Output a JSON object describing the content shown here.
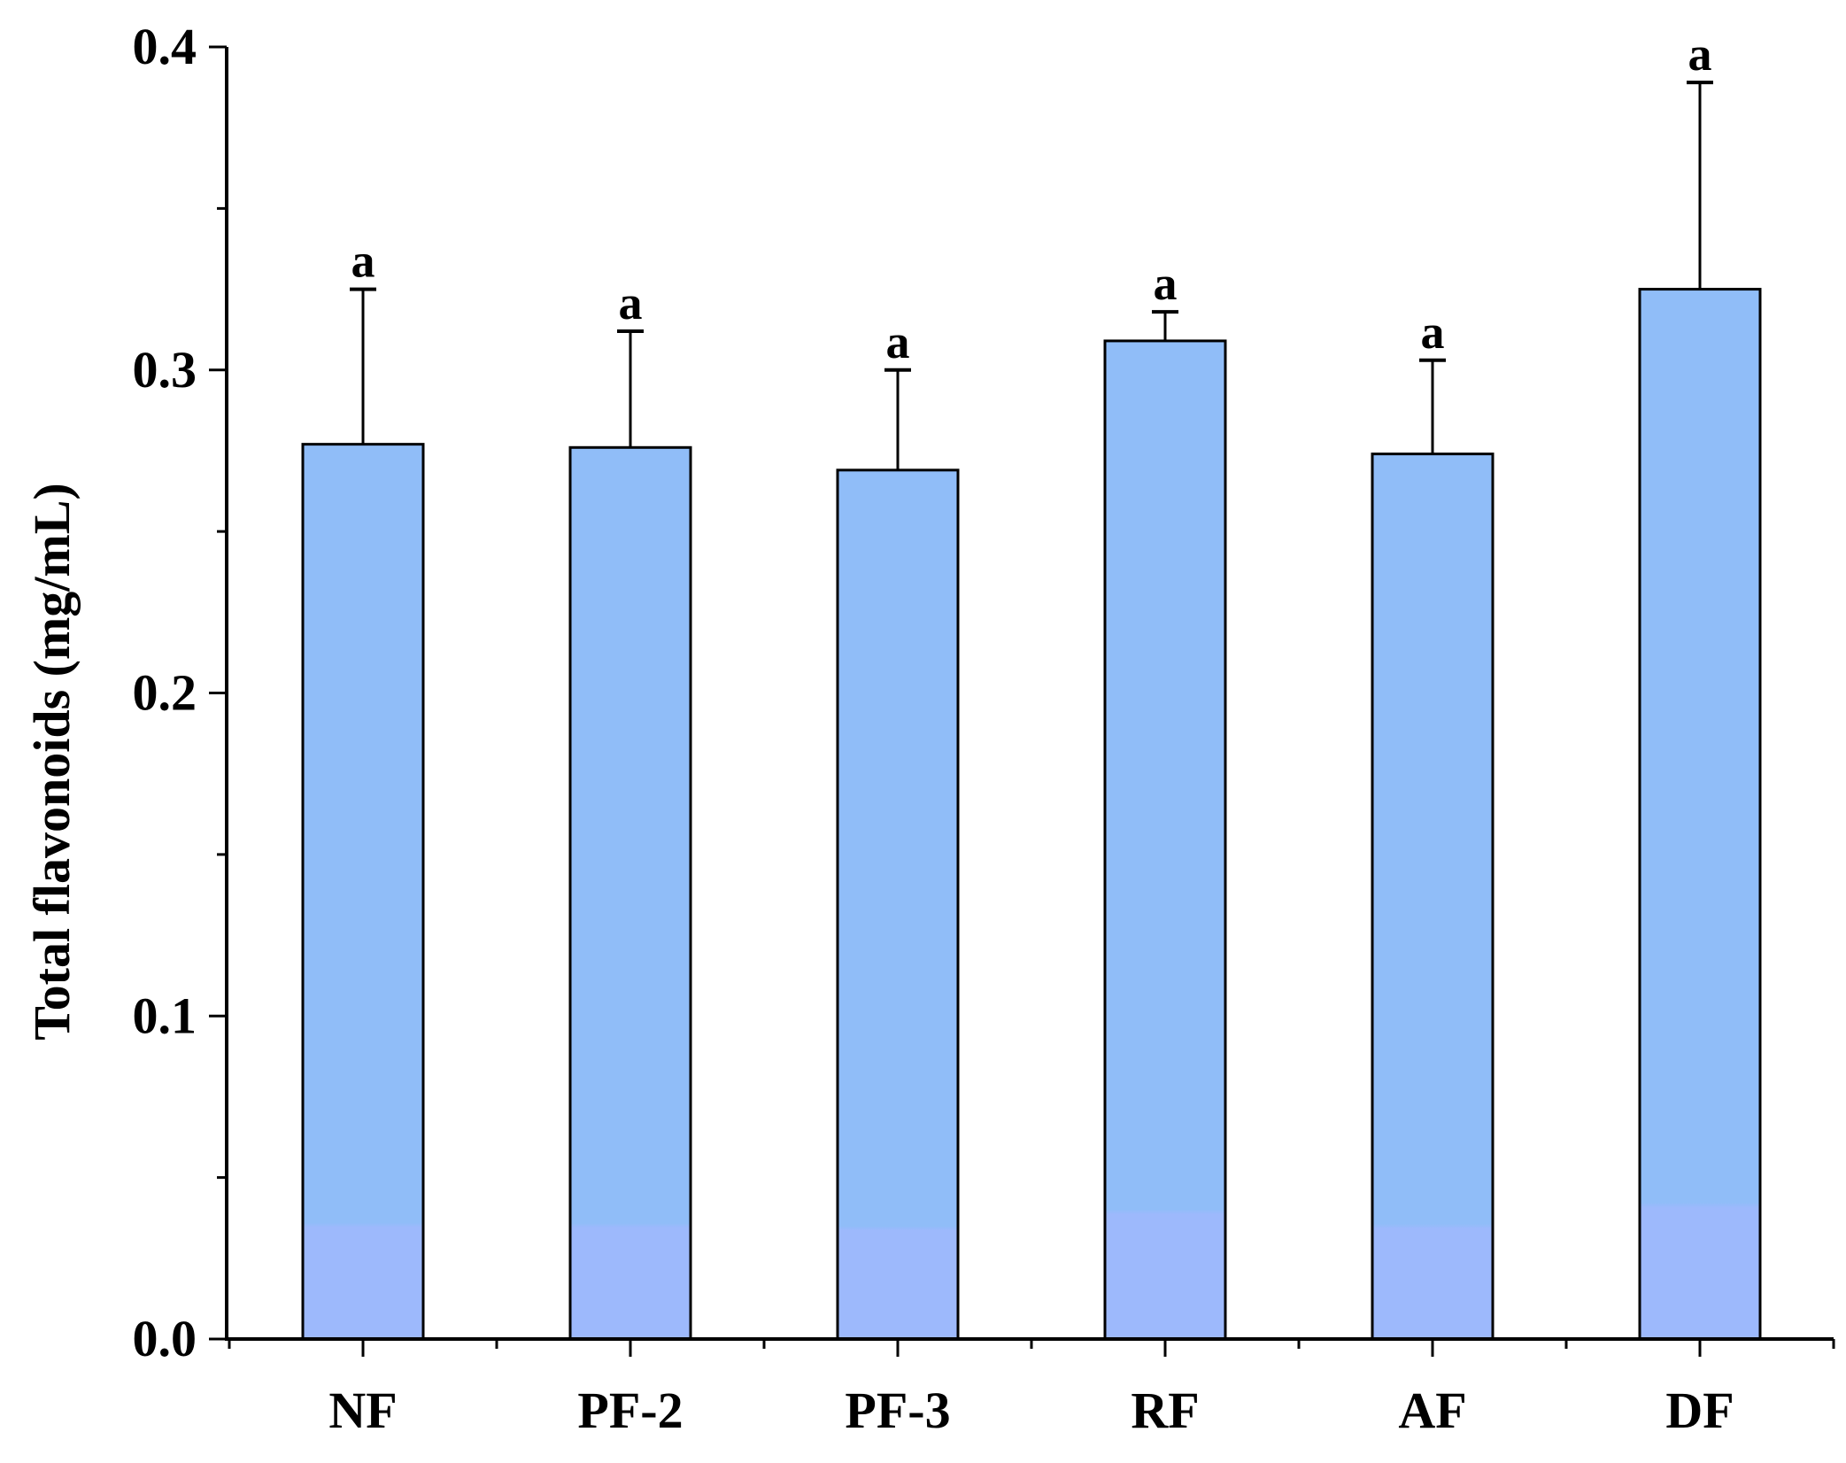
{
  "chart_data": {
    "type": "bar",
    "categories": [
      "NF",
      "PF-2",
      "PF-3",
      "RF",
      "AF",
      "DF"
    ],
    "values": [
      0.277,
      0.276,
      0.269,
      0.309,
      0.274,
      0.325
    ],
    "error_bars": [
      0.048,
      0.036,
      0.031,
      0.009,
      0.029,
      0.064
    ],
    "significance_labels": [
      "a",
      "a",
      "a",
      "a",
      "a",
      "a"
    ],
    "ylabel": "Total flavonoids (mg/mL)",
    "xlabel": "",
    "ylim": [
      0.0,
      0.4
    ],
    "yticks": [
      0.0,
      0.1,
      0.2,
      0.3,
      0.4
    ],
    "ytick_labels": [
      "0.0",
      "0.1",
      "0.2",
      "0.3",
      "0.4"
    ],
    "grid": false,
    "bar_color": "#90BDF8",
    "bar_color_bottom": "#9DB9FC",
    "edge_color": "#000000"
  }
}
